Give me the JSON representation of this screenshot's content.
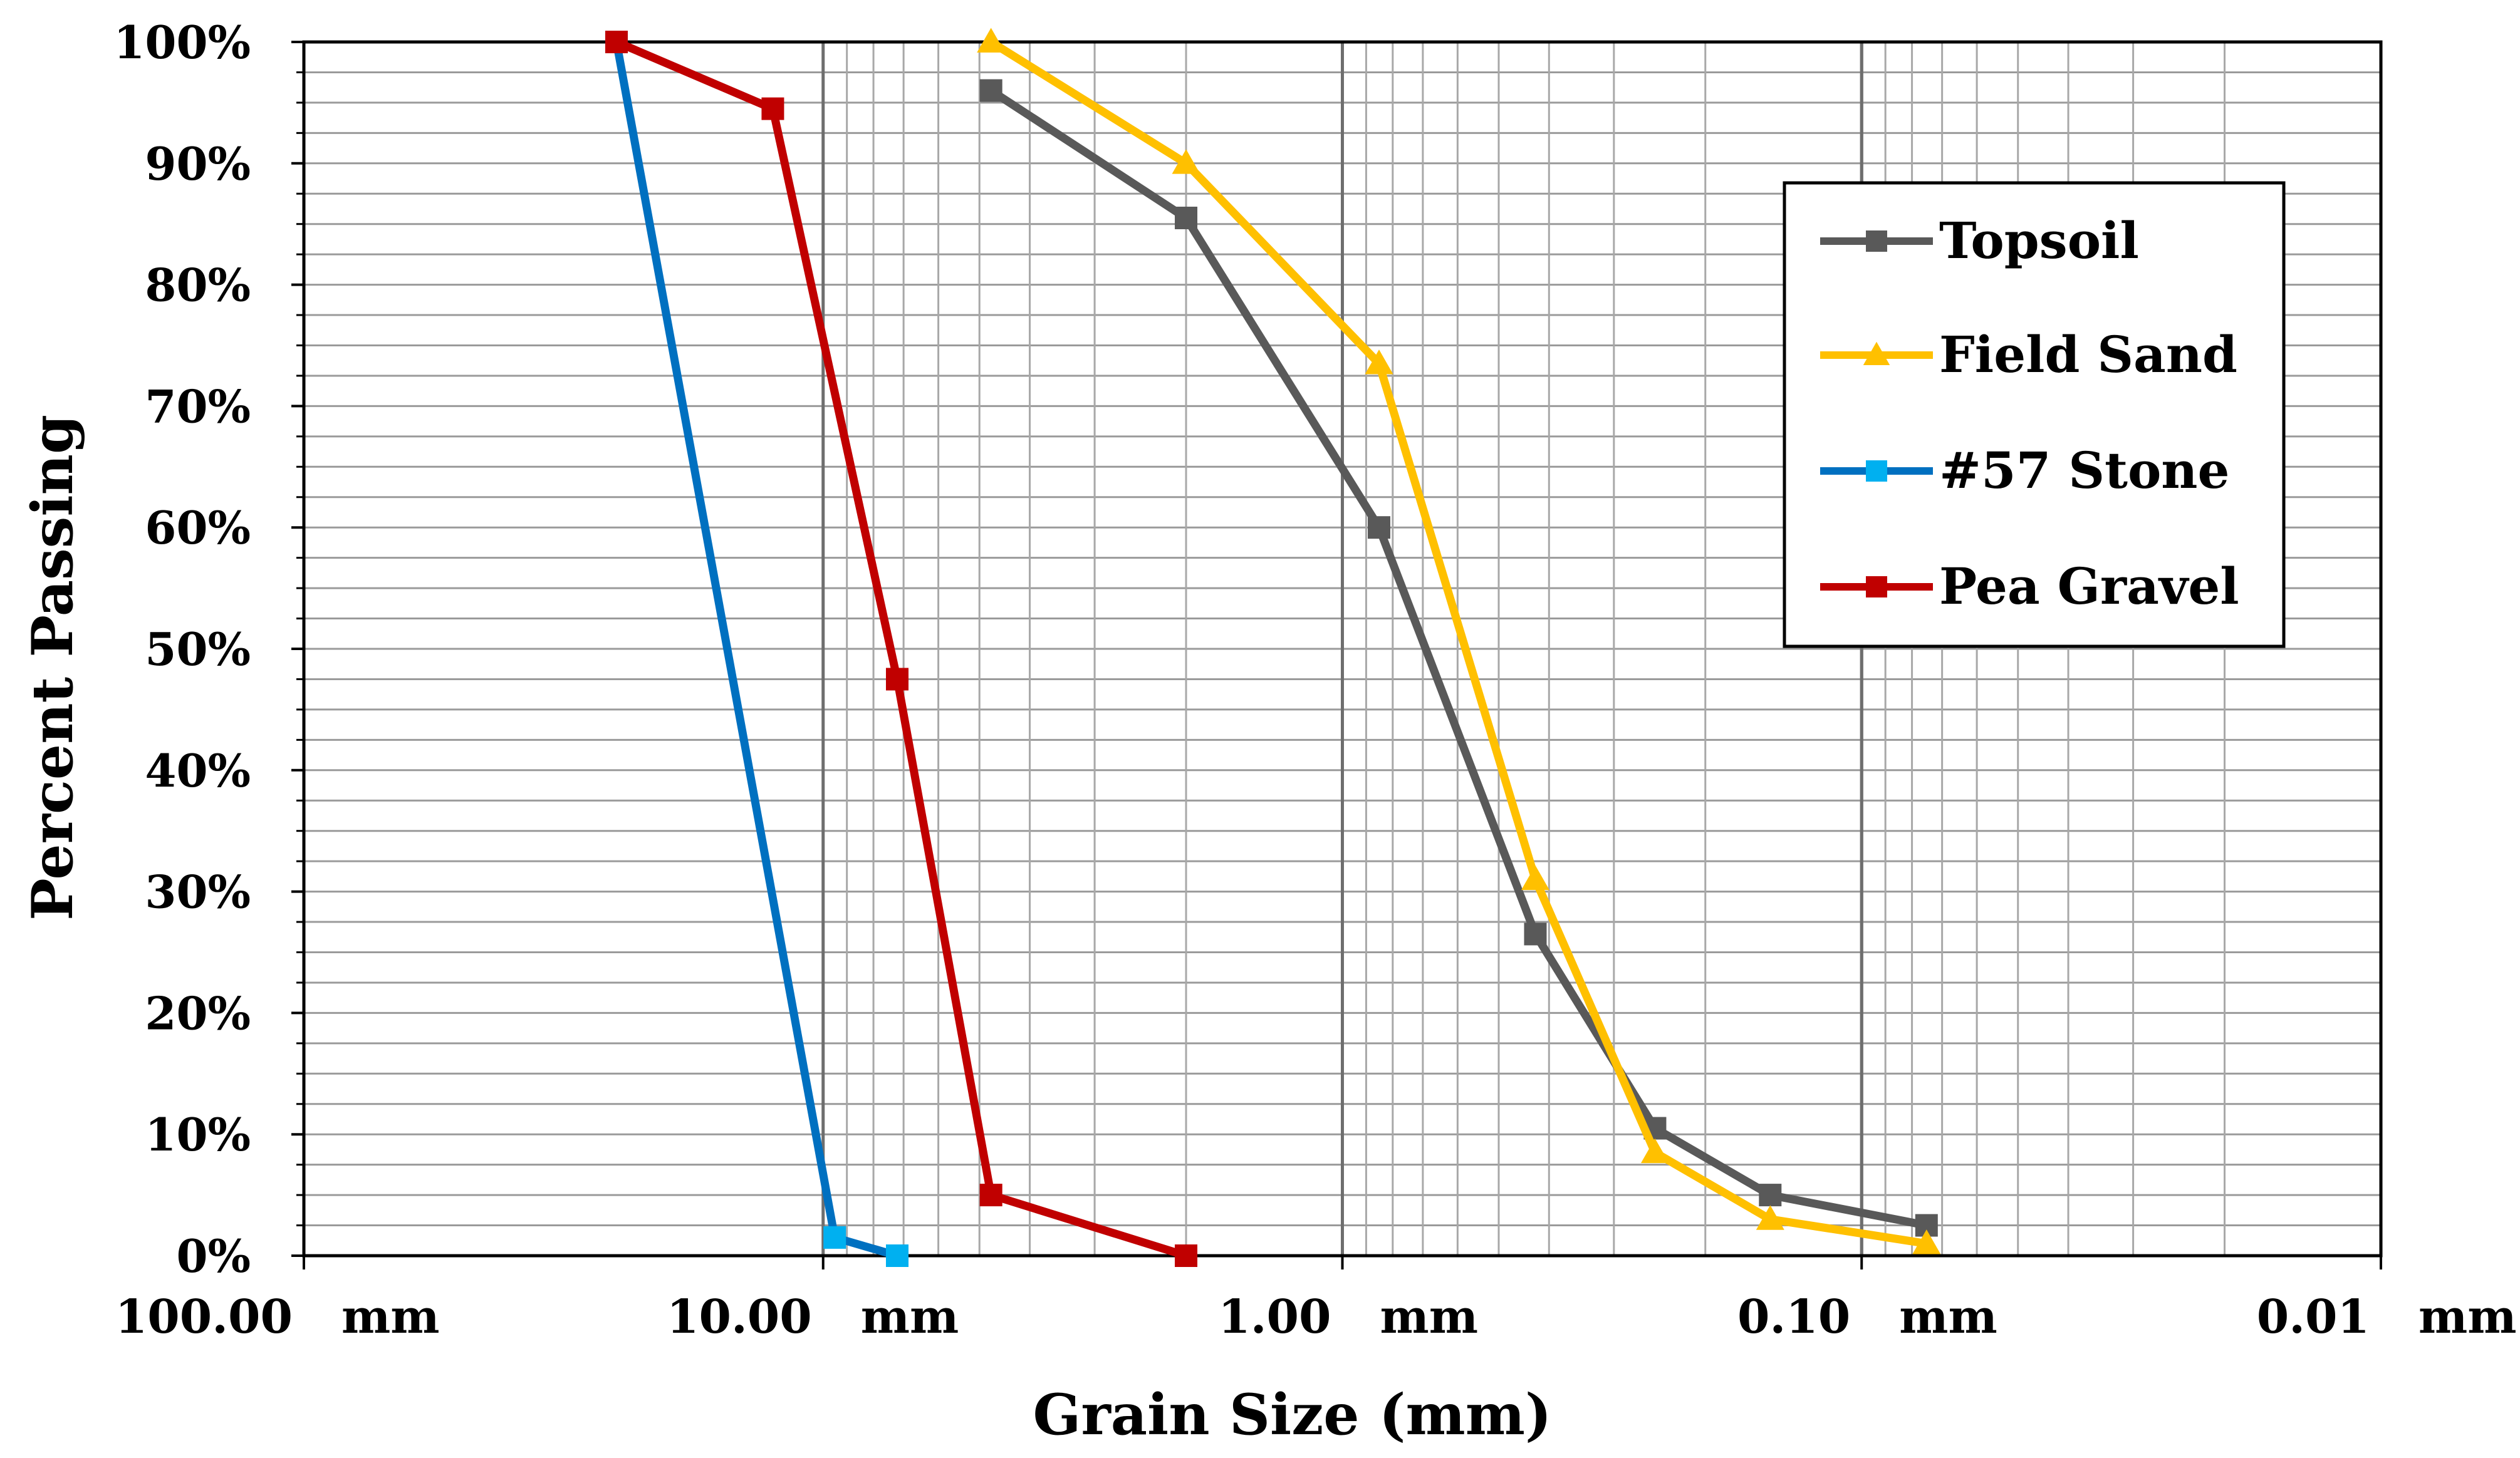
{
  "chart_data": {
    "type": "line",
    "x_scale": "log",
    "x_reversed": true,
    "xlim": [
      100,
      0.01
    ],
    "ylim": [
      0,
      100
    ],
    "xlabel": "Grain Size (mm)",
    "ylabel": "Percent Passing",
    "x_ticks": [
      {
        "value": 100,
        "number": "100.00",
        "unit": "mm"
      },
      {
        "value": 10,
        "number": "10.00",
        "unit": "mm"
      },
      {
        "value": 1,
        "number": "1.00",
        "unit": "mm"
      },
      {
        "value": 0.1,
        "number": "0.10",
        "unit": "mm"
      },
      {
        "value": 0.01,
        "number": "0.01",
        "unit": "mm"
      }
    ],
    "y_ticks": [
      "0%",
      "10%",
      "20%",
      "30%",
      "40%",
      "50%",
      "60%",
      "70%",
      "80%",
      "90%",
      "100%"
    ],
    "grid": true,
    "legend_position": "top-right",
    "series": [
      {
        "name": "Topsoil",
        "color": "#595959",
        "marker": "square",
        "points": [
          [
            4.75,
            96
          ],
          [
            2.0,
            85.5
          ],
          [
            0.85,
            60
          ],
          [
            0.425,
            26.5
          ],
          [
            0.25,
            10.5
          ],
          [
            0.15,
            5
          ],
          [
            0.075,
            2.5
          ]
        ]
      },
      {
        "name": "Field Sand",
        "color": "#ffc000",
        "marker": "triangle",
        "points": [
          [
            4.75,
            100
          ],
          [
            2.0,
            90
          ],
          [
            0.85,
            73.5
          ],
          [
            0.425,
            31
          ],
          [
            0.25,
            8.5
          ],
          [
            0.15,
            3
          ],
          [
            0.075,
            1
          ]
        ]
      },
      {
        "name": "#57 Stone",
        "color": "#0070c0",
        "marker_color": "#00b0f0",
        "marker": "square",
        "points": [
          [
            25,
            100
          ],
          [
            9.5,
            1.5
          ],
          [
            7.2,
            0
          ]
        ]
      },
      {
        "name": "Pea Gravel",
        "color": "#c00000",
        "marker": "square",
        "points": [
          [
            25,
            100
          ],
          [
            12.5,
            94.5
          ],
          [
            7.2,
            47.5
          ],
          [
            4.75,
            5
          ],
          [
            2.0,
            0
          ]
        ]
      }
    ]
  }
}
